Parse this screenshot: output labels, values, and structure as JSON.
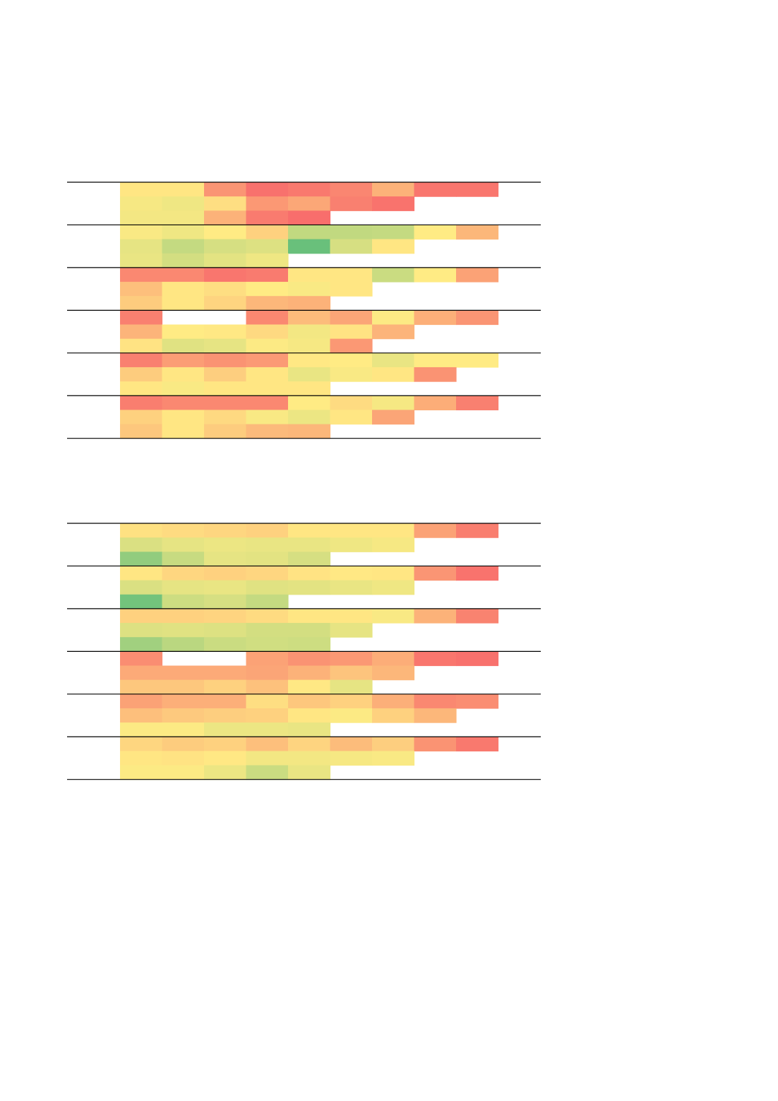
{
  "chart_data": [
    {
      "type": "heatmap",
      "title": "",
      "color_scale": {
        "low": "#63be7b",
        "mid": "#ffeb84",
        "high": "#f8696b",
        "domain": [
          0,
          1
        ]
      },
      "groups": [
        {
          "rows": [
            [
              0.52,
              0.52,
              0.83,
              0.97,
              0.94,
              0.89,
              0.72,
              0.95,
              0.95
            ],
            [
              0.47,
              0.45,
              0.55,
              0.82,
              0.76,
              0.91,
              0.96
            ],
            [
              0.46,
              0.46,
              0.72,
              0.93,
              0.98
            ]
          ]
        },
        {
          "rows": [
            [
              0.48,
              0.45,
              0.5,
              0.6,
              0.3,
              0.3,
              0.31,
              0.5,
              0.7
            ],
            [
              0.42,
              0.31,
              0.37,
              0.39,
              0.02,
              0.37,
              0.52
            ],
            [
              0.43,
              0.36,
              0.41,
              0.45
            ]
          ]
        },
        {
          "rows": [
            [
              0.88,
              0.88,
              0.95,
              0.93,
              0.52,
              0.52,
              0.33,
              0.5,
              0.78
            ],
            [
              0.67,
              0.52,
              0.55,
              0.5,
              0.48,
              0.52
            ],
            [
              0.62,
              0.52,
              0.59,
              0.7,
              0.72
            ]
          ]
        },
        {
          "rows": [
            [
              0.91,
              null,
              null,
              0.88,
              0.68,
              0.77,
              0.49,
              0.73,
              0.83
            ],
            [
              0.71,
              0.5,
              0.51,
              0.57,
              0.46,
              0.53,
              0.71
            ],
            [
              0.53,
              0.4,
              0.42,
              0.49,
              0.47,
              0.82
            ]
          ]
        },
        {
          "rows": [
            [
              0.91,
              0.8,
              0.84,
              0.81,
              0.51,
              0.5,
              0.43,
              0.5,
              0.5
            ],
            [
              0.62,
              0.52,
              0.61,
              0.52,
              0.43,
              0.48,
              0.52,
              0.84
            ],
            [
              0.52,
              0.48,
              0.52,
              0.52,
              0.52
            ]
          ]
        },
        {
          "rows": [
            [
              0.92,
              0.88,
              0.88,
              0.88,
              0.5,
              0.56,
              0.47,
              0.74,
              0.91
            ],
            [
              0.6,
              0.52,
              0.57,
              0.48,
              0.44,
              0.52,
              0.77
            ],
            [
              0.64,
              0.52,
              0.62,
              0.69,
              0.7
            ]
          ]
        }
      ]
    },
    {
      "type": "heatmap",
      "title": "",
      "color_scale": {
        "low": "#63be7b",
        "mid": "#ffeb84",
        "high": "#f8696b",
        "domain": [
          0,
          1
        ]
      },
      "groups": [
        {
          "rows": [
            [
              0.54,
              0.56,
              0.58,
              0.6,
              0.52,
              0.52,
              0.52,
              0.78,
              0.92
            ],
            [
              0.38,
              0.42,
              0.44,
              0.43,
              0.43,
              0.45,
              0.47
            ],
            [
              0.15,
              0.32,
              0.42,
              0.41,
              0.37
            ]
          ]
        },
        {
          "rows": [
            [
              0.52,
              0.58,
              0.6,
              0.58,
              0.53,
              0.51,
              0.52,
              0.83,
              0.96
            ],
            [
              0.38,
              0.42,
              0.43,
              0.4,
              0.41,
              0.43,
              0.45
            ],
            [
              0.05,
              0.34,
              0.37,
              0.31
            ]
          ]
        },
        {
          "rows": [
            [
              0.6,
              0.6,
              0.59,
              0.56,
              0.52,
              0.52,
              0.48,
              0.72,
              0.9
            ],
            [
              0.39,
              0.4,
              0.39,
              0.36,
              0.36,
              0.42
            ],
            [
              0.2,
              0.28,
              0.33,
              0.35,
              0.34
            ]
          ]
        },
        {
          "rows": [
            [
              0.86,
              null,
              null,
              0.78,
              0.84,
              0.82,
              0.74,
              0.95,
              0.97
            ],
            [
              0.75,
              0.75,
              0.75,
              0.77,
              0.72,
              0.65,
              0.7
            ],
            [
              0.64,
              0.64,
              0.6,
              0.66,
              0.51,
              0.42
            ]
          ]
        },
        {
          "rows": [
            [
              0.78,
              0.73,
              0.73,
              0.55,
              0.64,
              0.6,
              0.73,
              0.88,
              0.86
            ],
            [
              0.67,
              0.63,
              0.61,
              0.6,
              0.52,
              0.49,
              0.6,
              0.7
            ],
            [
              0.49,
              0.49,
              0.44,
              0.44,
              0.43
            ]
          ]
        },
        {
          "rows": [
            [
              0.58,
              0.62,
              0.6,
              0.67,
              0.59,
              0.68,
              0.61,
              0.84,
              0.94
            ],
            [
              0.52,
              0.53,
              0.51,
              0.46,
              0.46,
              0.47,
              0.48
            ],
            [
              0.49,
              0.49,
              0.44,
              0.33,
              0.43
            ]
          ]
        }
      ]
    }
  ]
}
